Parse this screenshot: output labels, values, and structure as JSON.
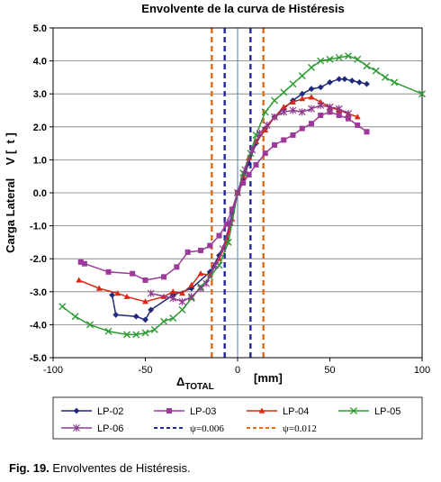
{
  "chart_data": {
    "type": "line",
    "title": "Envolvente de la curva de Histéresis",
    "xlabel_prefix": "Δ",
    "xlabel_sub": "TOTAL",
    "xlabel_unit": "[mm]",
    "ylabel": "Carga Lateral    V [  t ]",
    "xlim": [
      -100,
      100
    ],
    "ylim": [
      -5.0,
      5.0
    ],
    "xticks": [
      "-100",
      "-50",
      "0",
      "50",
      "100"
    ],
    "xtick_values": [
      -100,
      -50,
      0,
      50,
      100
    ],
    "yticks": [
      "5.0",
      "4.0",
      "3.0",
      "2.0",
      "1.0",
      "0.0",
      "-1.0",
      "-2.0",
      "-3.0",
      "-4.0",
      "-5.0"
    ],
    "ytick_values": [
      5,
      4,
      3,
      2,
      1,
      0,
      -1,
      -2,
      -3,
      -4,
      -5
    ],
    "grid": "horizontal",
    "legend_position": "bottom",
    "series": [
      {
        "name": "LP-02",
        "color": "#1f2a7a",
        "marker": "diamond",
        "x": [
          -68,
          -66,
          -55,
          -50,
          -47,
          -35,
          -25,
          -15,
          -10,
          -6,
          -3,
          0,
          3,
          6,
          10,
          15,
          20,
          25,
          30,
          35,
          40,
          45,
          50,
          55,
          58,
          62,
          66,
          70
        ],
        "y": [
          -3.1,
          -3.7,
          -3.75,
          -3.85,
          -3.55,
          -3.1,
          -2.9,
          -2.4,
          -1.9,
          -1.4,
          -0.6,
          0.0,
          0.4,
          0.9,
          1.5,
          1.95,
          2.3,
          2.55,
          2.8,
          3.0,
          3.15,
          3.2,
          3.35,
          3.45,
          3.45,
          3.4,
          3.35,
          3.3
        ]
      },
      {
        "name": "LP-03",
        "color": "#9b3a9b",
        "marker": "square",
        "x": [
          -85,
          -83,
          -70,
          -57,
          -50,
          -40,
          -33,
          -27,
          -20,
          -15,
          -10,
          -6,
          -3,
          0,
          3,
          6,
          10,
          15,
          20,
          25,
          30,
          35,
          40,
          45,
          50,
          55,
          60,
          65,
          70
        ],
        "y": [
          -2.1,
          -2.15,
          -2.4,
          -2.45,
          -2.65,
          -2.55,
          -2.25,
          -1.8,
          -1.75,
          -1.6,
          -1.3,
          -0.95,
          -0.5,
          0.0,
          0.3,
          0.55,
          0.85,
          1.2,
          1.45,
          1.6,
          1.75,
          1.95,
          2.1,
          2.35,
          2.45,
          2.35,
          2.25,
          2.05,
          1.85
        ]
      },
      {
        "name": "LP-04",
        "color": "#d62a16",
        "marker": "triangle",
        "x": [
          -86,
          -75,
          -65,
          -60,
          -50,
          -40,
          -35,
          -30,
          -25,
          -20,
          -15,
          -10,
          -6,
          -3,
          0,
          3,
          6,
          10,
          15,
          20,
          25,
          30,
          35,
          40,
          45,
          50,
          55,
          60,
          65
        ],
        "y": [
          -2.65,
          -2.9,
          -3.05,
          -3.15,
          -3.3,
          -3.15,
          -3.0,
          -3.05,
          -2.8,
          -2.45,
          -2.5,
          -2.0,
          -1.5,
          -0.8,
          0.0,
          0.5,
          1.05,
          1.55,
          1.9,
          2.3,
          2.6,
          2.75,
          2.85,
          2.9,
          2.75,
          2.6,
          2.5,
          2.4,
          2.3
        ]
      },
      {
        "name": "LP-05",
        "color": "#2e9a34",
        "marker": "x",
        "x": [
          -95,
          -88,
          -80,
          -70,
          -60,
          -55,
          -50,
          -45,
          -40,
          -35,
          -30,
          -25,
          -20,
          -15,
          -10,
          -5,
          0,
          3,
          7,
          10,
          15,
          20,
          25,
          30,
          35,
          40,
          45,
          50,
          55,
          60,
          65,
          70,
          75,
          80,
          85,
          100
        ],
        "y": [
          -3.45,
          -3.75,
          -4.0,
          -4.2,
          -4.3,
          -4.3,
          -4.25,
          -4.15,
          -3.9,
          -3.8,
          -3.55,
          -3.2,
          -2.85,
          -2.55,
          -2.2,
          -1.5,
          0.0,
          0.6,
          1.2,
          1.75,
          2.45,
          2.8,
          3.05,
          3.3,
          3.55,
          3.8,
          4.0,
          4.05,
          4.1,
          4.15,
          4.05,
          3.85,
          3.7,
          3.5,
          3.35,
          3.0
        ]
      },
      {
        "name": "LP-06",
        "color": "#8e3a8e",
        "marker": "star",
        "x": [
          -47,
          -35,
          -30,
          -25,
          -20,
          -17,
          -12,
          -8,
          -4,
          0,
          4,
          8,
          12,
          16,
          20,
          25,
          30,
          35,
          40,
          45,
          50,
          55,
          60
        ],
        "y": [
          -3.05,
          -3.2,
          -3.3,
          -3.15,
          -2.9,
          -2.75,
          -2.2,
          -1.7,
          -0.9,
          0.0,
          0.7,
          1.3,
          1.8,
          2.05,
          2.3,
          2.45,
          2.5,
          2.45,
          2.55,
          2.65,
          2.6,
          2.55,
          2.4
        ]
      }
    ],
    "reference_lines": [
      {
        "name": "ψ=0.006",
        "color": "#1f2a9a",
        "x": [
          -7,
          7
        ]
      },
      {
        "name": "ψ=0.012",
        "color": "#e06a1a",
        "x": [
          -14,
          14
        ]
      }
    ],
    "zero_line_color": "#5a78c0"
  },
  "caption": {
    "label": "Fig. 19.",
    "text": "Envolventes de Histéresis."
  }
}
